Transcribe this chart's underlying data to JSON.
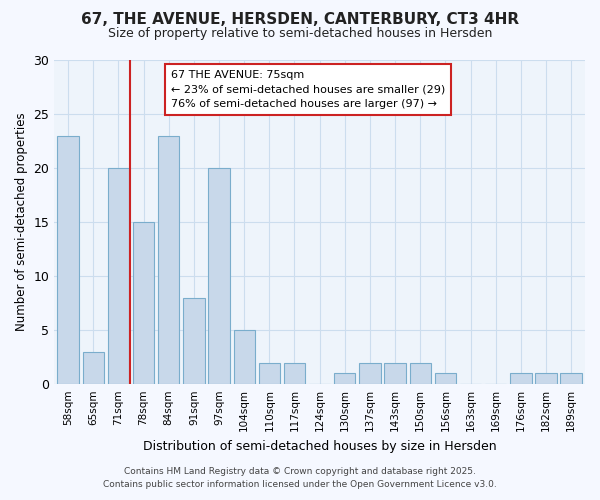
{
  "title1": "67, THE AVENUE, HERSDEN, CANTERBURY, CT3 4HR",
  "title2": "Size of property relative to semi-detached houses in Hersden",
  "xlabel": "Distribution of semi-detached houses by size in Hersden",
  "ylabel": "Number of semi-detached properties",
  "categories": [
    "58sqm",
    "65sqm",
    "71sqm",
    "78sqm",
    "84sqm",
    "91sqm",
    "97sqm",
    "104sqm",
    "110sqm",
    "117sqm",
    "124sqm",
    "130sqm",
    "137sqm",
    "143sqm",
    "150sqm",
    "156sqm",
    "163sqm",
    "169sqm",
    "176sqm",
    "182sqm",
    "189sqm"
  ],
  "values": [
    23,
    3,
    20,
    15,
    23,
    8,
    20,
    5,
    2,
    2,
    0,
    1,
    2,
    2,
    2,
    1,
    0,
    0,
    1,
    1,
    1
  ],
  "bar_color": "#c8d8ea",
  "bar_edge_color": "#7aadcc",
  "annotation_label": "67 THE AVENUE: 75sqm",
  "annotation_smaller": "← 23% of semi-detached houses are smaller (29)",
  "annotation_larger": "76% of semi-detached houses are larger (97) →",
  "vline_color": "#cc2222",
  "annotation_box_facecolor": "#ffffff",
  "annotation_box_edgecolor": "#cc2222",
  "ylim": [
    0,
    30
  ],
  "yticks": [
    0,
    5,
    10,
    15,
    20,
    25,
    30
  ],
  "grid_color": "#ccddee",
  "plot_bg_color": "#eef4fb",
  "fig_bg_color": "#f5f8ff",
  "footer1": "Contains HM Land Registry data © Crown copyright and database right 2025.",
  "footer2": "Contains public sector information licensed under the Open Government Licence v3.0.",
  "vline_x_index": 2.46
}
